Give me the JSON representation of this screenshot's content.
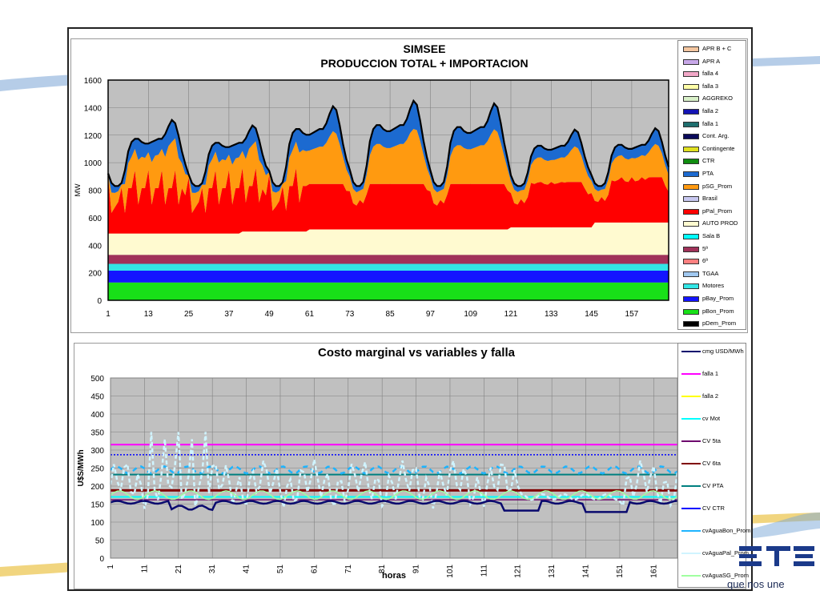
{
  "chart_data": [
    {
      "type": "area",
      "title": "SIMSEE",
      "subtitle": "PRODUCCION TOTAL + IMPORTACION",
      "ylabel": "MW",
      "ylim": [
        0,
        1600
      ],
      "y_ticks": [
        "0",
        "200",
        "400",
        "600",
        "800",
        "1000",
        "1200",
        "1400",
        "1600"
      ],
      "x_ticks": [
        "1",
        "13",
        "25",
        "37",
        "49",
        "61",
        "73",
        "85",
        "97",
        "109",
        "121",
        "133",
        "145",
        "157"
      ],
      "x_range": [
        1,
        168
      ],
      "grid": true,
      "legend_position": "right",
      "legend": [
        "APR B + C",
        "APR A",
        "falla 4",
        "falla 3",
        "AGGREKO",
        "falla 2",
        "falla 1",
        "Cont. Arg.",
        "Contingente",
        "CTR",
        "PTA",
        "pSG_Prom",
        "Brasil",
        "pPal_Prom",
        "AUTO PROD",
        "Sala B",
        "5ª",
        "6ª",
        "TGAA",
        "Motores",
        "pBay_Prom",
        "pBon_Prom",
        "pDem_Prom"
      ],
      "legend_colors": [
        "#f4c6a0",
        "#c8a8e8",
        "#f2a8c8",
        "#ffffa8",
        "#d8f0c8",
        "#1414b4",
        "#1e6e6e",
        "#0a0a5a",
        "#e0e020",
        "#108c10",
        "#1c6ad0",
        "#ff9a10",
        "#c8c8f0",
        "#ff0000",
        "#fffad0",
        "#00ffff",
        "#a0325a",
        "#ff8080",
        "#a0c8f0",
        "#32e6e6",
        "#1414ff",
        "#18e018",
        "#000000"
      ],
      "series": [
        {
          "name": "pBon_Prom",
          "values": [
            130
          ]
        },
        {
          "name": "pBay_Prom",
          "values": [
            85
          ]
        },
        {
          "name": "Motores",
          "values": [
            50
          ]
        },
        {
          "name": "5ª",
          "values": [
            65
          ]
        },
        {
          "name": "AUTO PROD",
          "values": [
            155,
            165,
            170,
            185,
            190,
            190,
            200,
            210,
            235
          ]
        },
        {
          "name": "pPal_Prom",
          "values": [
            280,
            260
          ]
        },
        {
          "name": "pSG_Prom",
          "values": [
            200,
            300,
            350
          ]
        },
        {
          "name": "PTA",
          "values": [
            150,
            200,
            250
          ]
        },
        {
          "name": "pDem_Prom",
          "values": [
            1000,
            880,
            1310,
            830,
            1270,
            1410,
            1450,
            1430,
            830,
            1240,
            810,
            1250,
            1010
          ]
        }
      ]
    },
    {
      "type": "line",
      "title": "Costo marginal vs variables y falla",
      "xlabel": "horas",
      "ylabel": "U$S/MWh",
      "ylim": [
        0,
        500
      ],
      "y_ticks": [
        "0",
        "50",
        "100",
        "150",
        "200",
        "250",
        "300",
        "350",
        "400",
        "450",
        "500"
      ],
      "x_ticks": [
        "1",
        "11",
        "21",
        "31",
        "41",
        "51",
        "61",
        "71",
        "81",
        "91",
        "101",
        "111",
        "121",
        "131",
        "141",
        "151",
        "161"
      ],
      "x_range": [
        1,
        168
      ],
      "grid": true,
      "legend_position": "right",
      "legend": [
        "cmg USD/MWh",
        "falla 1",
        "falla 2",
        "cv Mot",
        "CV 5ta",
        "CV 6ta",
        "CV PTA",
        "CV CTR",
        "cvAguaBon_Prom",
        "cvAguaPal_Prom",
        "cvAguaSG_Prom"
      ],
      "legend_colors": [
        "#0a0a6e",
        "#ff00ff",
        "#ffff00",
        "#00ffff",
        "#6e0a6e",
        "#800000",
        "#008080",
        "#0000ff",
        "#1eb4ff",
        "#d0f4ff",
        "#a0ffa0"
      ],
      "series": [
        {
          "name": "falla 1",
          "values": [
            315
          ]
        },
        {
          "name": "CV CTR",
          "values": [
            287
          ]
        },
        {
          "name": "CV PTA",
          "values": [
            232
          ]
        },
        {
          "name": "CV 6ta",
          "values": [
            188
          ]
        },
        {
          "name": "cv Mot",
          "values": [
            170
          ]
        },
        {
          "name": "CV 5ta",
          "values": [
            162
          ]
        },
        {
          "name": "cmg USD/MWh",
          "values": [
            155,
            135,
            158,
            130,
            155,
            125,
            155
          ]
        }
      ]
    }
  ],
  "legend1": [
    {
      "label": "APR B + C",
      "color": "#f4c6a0"
    },
    {
      "label": "APR A",
      "color": "#c8a8e8"
    },
    {
      "label": "falla 4",
      "color": "#f2a8c8"
    },
    {
      "label": "falla 3",
      "color": "#ffffa8"
    },
    {
      "label": "AGGREKO",
      "color": "#d8f0c8"
    },
    {
      "label": "falla 2",
      "color": "#1414b4"
    },
    {
      "label": "falla 1",
      "color": "#1e6e6e"
    },
    {
      "label": "Cont. Arg.",
      "color": "#0a0a5a"
    },
    {
      "label": "Contingente",
      "color": "#e0e020"
    },
    {
      "label": "CTR",
      "color": "#108c10"
    },
    {
      "label": "PTA",
      "color": "#1c6ad0"
    },
    {
      "label": "pSG_Prom",
      "color": "#ff9a10"
    },
    {
      "label": "Brasil",
      "color": "#c8c8f0"
    },
    {
      "label": "pPal_Prom",
      "color": "#ff0000"
    },
    {
      "label": "AUTO PROD",
      "color": "#fffad0"
    },
    {
      "label": "Sala B",
      "color": "#00ffff"
    },
    {
      "label": "5ª",
      "color": "#a0325a"
    },
    {
      "label": "6ª",
      "color": "#ff8080"
    },
    {
      "label": "TGAA",
      "color": "#a0c8f0"
    },
    {
      "label": "Motores",
      "color": "#32e6e6"
    },
    {
      "label": "pBay_Prom",
      "color": "#1414ff"
    },
    {
      "label": "pBon_Prom",
      "color": "#18e018"
    },
    {
      "label": "pDem_Prom",
      "color": "#000000"
    }
  ],
  "legend2": [
    {
      "label": "cmg USD/MWh",
      "color": "#0a0a6e"
    },
    {
      "label": "falla 1",
      "color": "#ff00ff"
    },
    {
      "label": "falla 2",
      "color": "#ffff00"
    },
    {
      "label": "cv Mot",
      "color": "#00ffff"
    },
    {
      "label": "CV 5ta",
      "color": "#6e0a6e"
    },
    {
      "label": "CV 6ta",
      "color": "#800000"
    },
    {
      "label": "CV PTA",
      "color": "#008080"
    },
    {
      "label": "CV CTR",
      "color": "#0000ff"
    },
    {
      "label": "cvAguaBon_Prom",
      "color": "#1eb4ff"
    },
    {
      "label": "cvAguaPal_Prom",
      "color": "#d0f4ff"
    },
    {
      "label": "cvAguaSG_Prom",
      "color": "#a0ffa0"
    }
  ],
  "brand": {
    "tagline": "que nos une"
  }
}
